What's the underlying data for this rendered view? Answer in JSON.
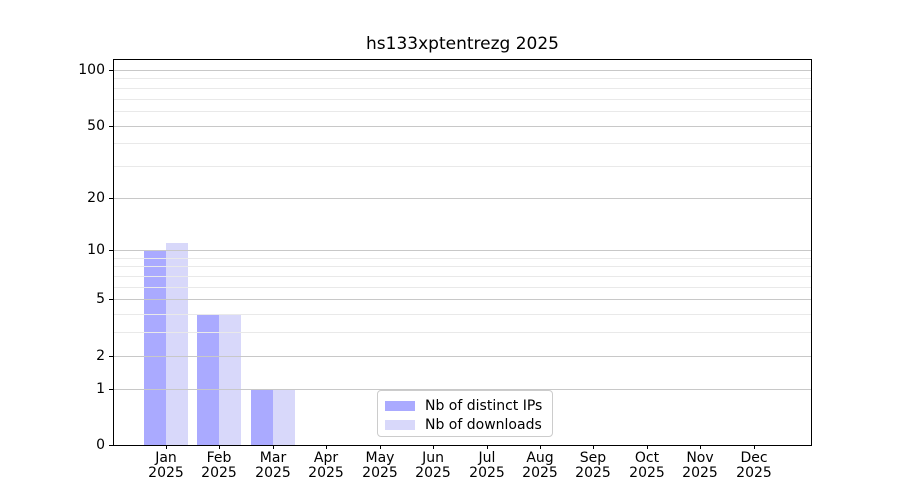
{
  "chart_data": {
    "type": "bar",
    "title": "hs133xptentrezg 2025",
    "categories": [
      "Jan",
      "Feb",
      "Mar",
      "Apr",
      "May",
      "Jun",
      "Jul",
      "Aug",
      "Sep",
      "Oct",
      "Nov",
      "Dec"
    ],
    "x_tick_year": "2025",
    "series": [
      {
        "name": "Nb of distinct IPs",
        "color": "#aaaaff",
        "values": [
          10,
          4,
          1,
          0,
          0,
          0,
          0,
          0,
          0,
          0,
          0,
          0
        ]
      },
      {
        "name": "Nb of downloads",
        "color": "#d8d8fa",
        "values": [
          11,
          4,
          1,
          0,
          0,
          0,
          0,
          0,
          0,
          0,
          0,
          0
        ]
      }
    ],
    "ylabel": "",
    "xlabel": "",
    "ylim": [
      0,
      100
    ],
    "yscale": "log10(value+1)",
    "y_major_ticks": [
      0,
      1,
      2,
      5,
      10,
      20,
      50,
      100
    ],
    "y_minor_gridlines": [
      3,
      4,
      6,
      7,
      8,
      9,
      30,
      40,
      60,
      70,
      80,
      90
    ],
    "grid": true,
    "legend_position": "lower center",
    "colors": {
      "spine": "#000000",
      "major_grid": "#c8c8c8",
      "minor_grid": "#e9e9e9",
      "background": "#ffffff"
    }
  }
}
